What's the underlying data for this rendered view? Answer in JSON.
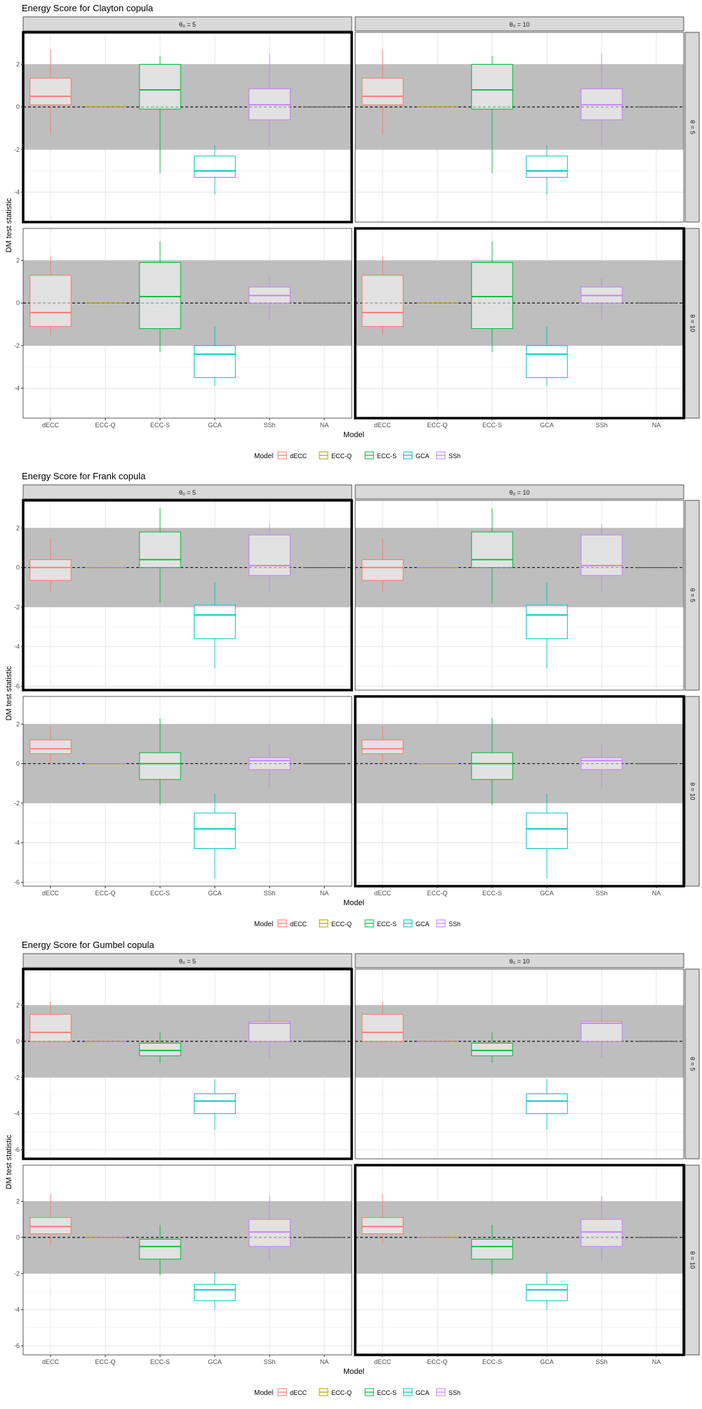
{
  "x_axis_title": "Model",
  "y_axis_title": "DM test statistic",
  "legend_title": "Model",
  "colors": {
    "dECC": "#F8766D",
    "ECC-Q": "#B79F00",
    "ECC-S": "#00BA38",
    "GCA": "#00BFC4",
    "SSh": "#C77CFF",
    "NA": "#555555",
    "band": "#BEBEBE",
    "strip": "#D9D9D9"
  },
  "chart_data": [
    {
      "type": "box",
      "title": "Energy Score for Clayton copula",
      "col_strips": [
        "θ₀ = 5",
        "θ₀ = 10"
      ],
      "row_strips": [
        "θ = 5",
        "θ = 10"
      ],
      "categories": [
        "dECC",
        "ECC-Q",
        "ECC-S",
        "GCA",
        "SSh",
        "NA"
      ],
      "legend": [
        "dECC",
        "ECC-Q",
        "ECC-S",
        "GCA",
        "SSh"
      ],
      "ylim": [
        -5.4,
        3.5
      ],
      "yticks": [
        -4,
        -2,
        0,
        2
      ],
      "band": [
        -2,
        2
      ],
      "highlight": [
        [
          0,
          0
        ],
        [
          1,
          1
        ]
      ],
      "rows": [
        [
          {
            "name": "dECC",
            "min": -1.3,
            "q1": 0.1,
            "median": 0.5,
            "q3": 1.35,
            "max": 2.7
          },
          {
            "name": "ECC-Q",
            "min": 0.0,
            "q1": 0.0,
            "median": 0.0,
            "q3": 0.0,
            "max": 0.0
          },
          {
            "name": "ECC-S",
            "min": -3.1,
            "q1": -0.1,
            "median": 0.8,
            "q3": 2.0,
            "max": 2.4
          },
          {
            "name": "GCA",
            "min": -4.1,
            "q1": -3.3,
            "median": -3.0,
            "q3": -2.3,
            "max": -1.8
          },
          {
            "name": "SSh",
            "min": -1.8,
            "q1": -0.6,
            "median": 0.1,
            "q3": 0.85,
            "max": 2.5
          },
          {
            "name": "NA",
            "min": 0.0,
            "q1": 0.0,
            "median": 0.0,
            "q3": 0.0,
            "max": 0.0
          }
        ],
        [
          {
            "name": "dECC",
            "min": -1.5,
            "q1": -1.1,
            "median": -0.45,
            "q3": 1.3,
            "max": 2.2
          },
          {
            "name": "ECC-Q",
            "min": 0.0,
            "q1": 0.0,
            "median": 0.0,
            "q3": 0.0,
            "max": 0.0
          },
          {
            "name": "ECC-S",
            "min": -2.3,
            "q1": -1.2,
            "median": 0.3,
            "q3": 1.9,
            "max": 2.9
          },
          {
            "name": "GCA",
            "min": -3.9,
            "q1": -3.5,
            "median": -2.4,
            "q3": -2.0,
            "max": -1.1
          },
          {
            "name": "SSh",
            "min": -0.8,
            "q1": 0.0,
            "median": 0.35,
            "q3": 0.75,
            "max": 1.2
          },
          {
            "name": "NA",
            "min": 0.0,
            "q1": 0.0,
            "median": 0.0,
            "q3": 0.0,
            "max": 0.0
          }
        ]
      ]
    },
    {
      "type": "box",
      "title": "Energy Score for Frank copula",
      "col_strips": [
        "θ₀ = 5",
        "θ₀ = 10"
      ],
      "row_strips": [
        "θ = 5",
        "θ = 10"
      ],
      "categories": [
        "dECC",
        "ECC-Q",
        "ECC-S",
        "GCA",
        "SSh",
        "NA"
      ],
      "legend": [
        "dECC",
        "ECC-Q",
        "ECC-S",
        "GCA",
        "SSh"
      ],
      "ylim": [
        -6.2,
        3.4
      ],
      "yticks": [
        -6,
        -4,
        -2,
        0,
        2
      ],
      "band": [
        -2,
        2
      ],
      "highlight": [
        [
          0,
          0
        ],
        [
          1,
          1
        ]
      ],
      "rows": [
        [
          {
            "name": "dECC",
            "min": -1.2,
            "q1": -0.65,
            "median": 0.0,
            "q3": 0.4,
            "max": 1.5
          },
          {
            "name": "ECC-Q",
            "min": 0.0,
            "q1": 0.0,
            "median": 0.0,
            "q3": 0.0,
            "max": 0.0
          },
          {
            "name": "ECC-S",
            "min": -1.8,
            "q1": 0.0,
            "median": 0.4,
            "q3": 1.8,
            "max": 3.0
          },
          {
            "name": "GCA",
            "min": -5.1,
            "q1": -3.6,
            "median": -2.4,
            "q3": -1.9,
            "max": -0.75
          },
          {
            "name": "SSh",
            "min": -1.2,
            "q1": -0.4,
            "median": 0.1,
            "q3": 1.65,
            "max": 2.2
          },
          {
            "name": "NA",
            "min": 0.0,
            "q1": 0.0,
            "median": 0.0,
            "q3": 0.0,
            "max": 0.0
          }
        ],
        [
          {
            "name": "dECC",
            "min": 0.0,
            "q1": 0.5,
            "median": 0.75,
            "q3": 1.2,
            "max": 1.9
          },
          {
            "name": "ECC-Q",
            "min": 0.0,
            "q1": 0.0,
            "median": 0.0,
            "q3": 0.0,
            "max": 0.0
          },
          {
            "name": "ECC-S",
            "min": -2.1,
            "q1": -0.8,
            "median": 0.0,
            "q3": 0.55,
            "max": 2.3
          },
          {
            "name": "GCA",
            "min": -5.8,
            "q1": -4.3,
            "median": -3.3,
            "q3": -2.5,
            "max": -1.5
          },
          {
            "name": "SSh",
            "min": -1.2,
            "q1": -0.3,
            "median": 0.15,
            "q3": 0.3,
            "max": 1.0
          },
          {
            "name": "NA",
            "min": 0.0,
            "q1": 0.0,
            "median": 0.0,
            "q3": 0.0,
            "max": 0.0
          }
        ]
      ]
    },
    {
      "type": "box",
      "title": "Energy Score for Gumbel copula",
      "col_strips": [
        "θ₀ = 5",
        "θ₀ = 10"
      ],
      "row_strips": [
        "θ = 5",
        "θ = 10"
      ],
      "categories": [
        "dECC",
        "ECC-Q",
        "ECC-S",
        "GCA",
        "SSh",
        "NA"
      ],
      "legend": [
        "dECC",
        "ECC-Q",
        "ECC-S",
        "GCA",
        "SSh"
      ],
      "ylim": [
        -6.5,
        4.0
      ],
      "yticks": [
        -6,
        -4,
        -2,
        0,
        2
      ],
      "band": [
        -2,
        2
      ],
      "highlight": [
        [
          0,
          0
        ],
        [
          1,
          1
        ]
      ],
      "rows": [
        [
          {
            "name": "dECC",
            "min": -0.1,
            "q1": 0.0,
            "median": 0.5,
            "q3": 1.5,
            "max": 2.2
          },
          {
            "name": "ECC-Q",
            "min": 0.0,
            "q1": 0.0,
            "median": 0.0,
            "q3": 0.0,
            "max": 0.0
          },
          {
            "name": "ECC-S",
            "min": -1.2,
            "q1": -0.8,
            "median": -0.5,
            "q3": -0.1,
            "max": 0.5
          },
          {
            "name": "GCA",
            "min": -4.9,
            "q1": -4.0,
            "median": -3.3,
            "q3": -2.9,
            "max": -2.1
          },
          {
            "name": "SSh",
            "min": -0.9,
            "q1": 0.0,
            "median": 1.0,
            "q3": 1.1,
            "max": 1.8
          },
          {
            "name": "NA",
            "min": 0.0,
            "q1": 0.0,
            "median": 0.0,
            "q3": 0.0,
            "max": 0.0
          }
        ],
        [
          {
            "name": "dECC",
            "min": -0.4,
            "q1": 0.2,
            "median": 0.6,
            "q3": 1.1,
            "max": 2.4
          },
          {
            "name": "ECC-Q",
            "min": 0.0,
            "q1": 0.0,
            "median": 0.0,
            "q3": 0.0,
            "max": 0.0
          },
          {
            "name": "ECC-S",
            "min": -2.1,
            "q1": -1.2,
            "median": -0.5,
            "q3": -0.1,
            "max": 0.7
          },
          {
            "name": "GCA",
            "min": -4.0,
            "q1": -3.5,
            "median": -2.9,
            "q3": -2.6,
            "max": -1.9
          },
          {
            "name": "SSh",
            "min": -1.3,
            "q1": -0.5,
            "median": 0.3,
            "q3": 1.0,
            "max": 2.3
          },
          {
            "name": "NA",
            "min": 0.0,
            "q1": 0.0,
            "median": 0.0,
            "q3": 0.0,
            "max": 0.0
          }
        ]
      ]
    }
  ]
}
